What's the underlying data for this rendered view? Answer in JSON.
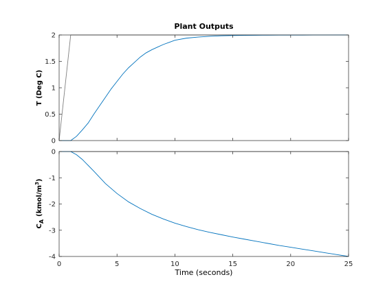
{
  "chart_data": [
    {
      "type": "line",
      "title": "Plant Outputs",
      "ylabel": "T (Deg C)",
      "xlim": [
        0,
        25
      ],
      "ylim": [
        0,
        2
      ],
      "xticks": [
        0,
        5,
        10,
        15,
        20,
        25
      ],
      "yticks": [
        "0",
        "0.5",
        "1",
        "1.5",
        "2"
      ],
      "show_xtick_labels": false,
      "series": [
        {
          "color": "#0072BD",
          "x": [
            0,
            1,
            1.5,
            2,
            2.5,
            3,
            3.5,
            4,
            4.5,
            5,
            5.5,
            6,
            6.5,
            7,
            7.5,
            8,
            8.5,
            9,
            9.5,
            10,
            11,
            12,
            13,
            14,
            15,
            16,
            17,
            18,
            19,
            20,
            21,
            22,
            23,
            24,
            25
          ],
          "y": [
            0,
            0,
            0.08,
            0.2,
            0.33,
            0.5,
            0.66,
            0.82,
            0.98,
            1.12,
            1.26,
            1.38,
            1.48,
            1.58,
            1.66,
            1.72,
            1.77,
            1.82,
            1.86,
            1.9,
            1.94,
            1.96,
            1.975,
            1.985,
            1.99,
            1.993,
            1.995,
            1.996,
            1.997,
            1.998,
            1.998,
            1.999,
            1.999,
            2.0,
            2.0
          ]
        },
        {
          "color": "#7f7f7f",
          "x": [
            0,
            1,
            25
          ],
          "y": [
            0,
            2,
            2
          ]
        }
      ]
    },
    {
      "type": "line",
      "ylabel_main": "C",
      "ylabel_sub": "A",
      "ylabel_unit_pre": "(kmol/m",
      "ylabel_unit_sup": "3",
      "ylabel_unit_post": ")",
      "xlabel": "Time (seconds)",
      "xlim": [
        0,
        25
      ],
      "ylim": [
        -4,
        0
      ],
      "xticks": [
        "0",
        "5",
        "10",
        "15",
        "20",
        "25"
      ],
      "yticks": [
        "-4",
        "-3",
        "-2",
        "-1",
        "0"
      ],
      "show_xtick_labels": true,
      "series": [
        {
          "color": "#0072BD",
          "x": [
            0,
            1,
            1.5,
            2,
            3,
            4,
            5,
            6,
            7,
            8,
            9,
            10,
            11,
            12,
            13,
            14,
            15,
            16,
            17,
            18,
            19,
            20,
            21,
            22,
            23,
            24,
            25
          ],
          "y": [
            0,
            0,
            -0.12,
            -0.3,
            -0.75,
            -1.22,
            -1.6,
            -1.92,
            -2.17,
            -2.39,
            -2.57,
            -2.73,
            -2.86,
            -2.98,
            -3.08,
            -3.17,
            -3.26,
            -3.34,
            -3.42,
            -3.5,
            -3.58,
            -3.65,
            -3.72,
            -3.79,
            -3.86,
            -3.93,
            -4.0
          ]
        },
        {
          "color": "#7f7f7f",
          "x": [
            0,
            25
          ],
          "y": [
            0,
            0
          ]
        }
      ]
    }
  ]
}
